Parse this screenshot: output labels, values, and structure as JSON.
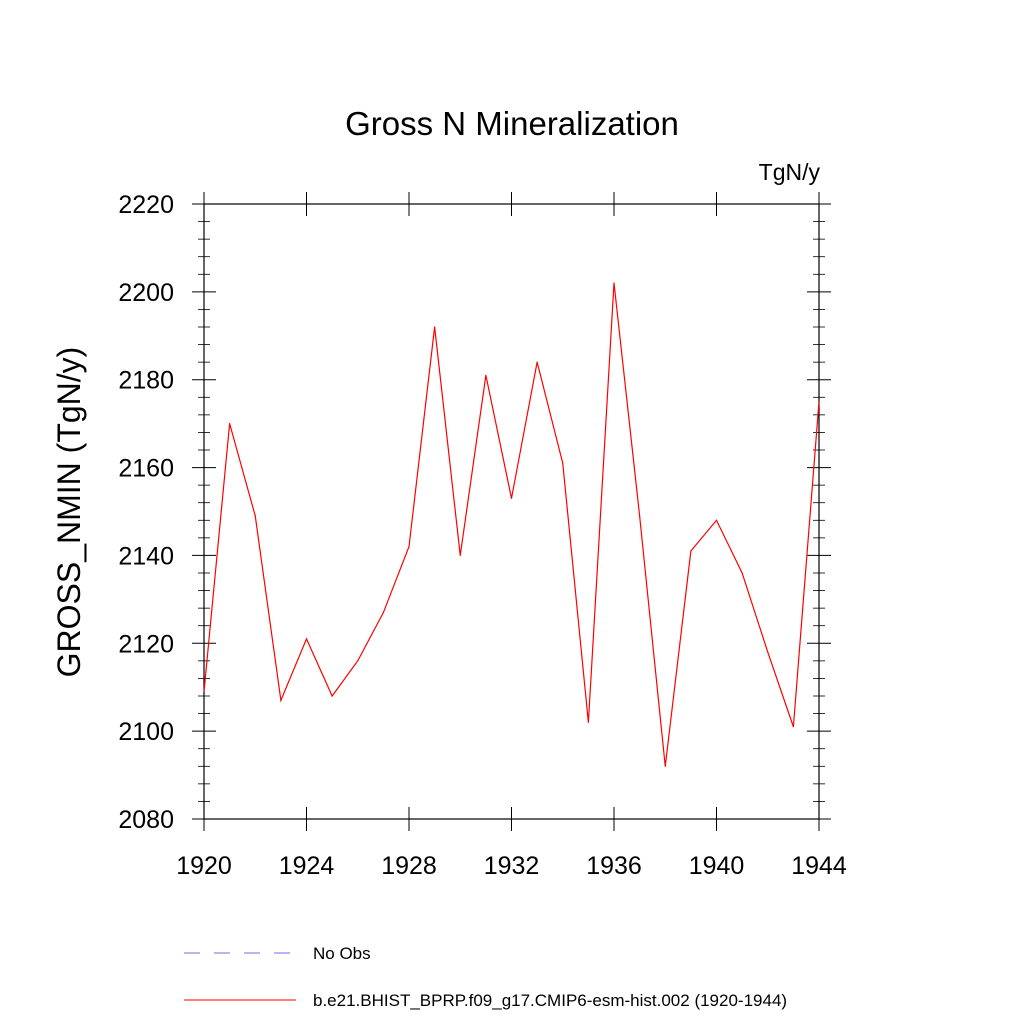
{
  "chart_data": {
    "type": "line",
    "title": "Gross N Mineralization",
    "units_label": "TgN/y",
    "ylabel": "GROSS_NMIN  (TgN/y)",
    "xlabel": "",
    "xlim": [
      1920,
      1944
    ],
    "ylim": [
      2080,
      2220
    ],
    "xticks": [
      1920,
      1924,
      1928,
      1932,
      1936,
      1940,
      1944
    ],
    "yticks": [
      2080,
      2100,
      2120,
      2140,
      2160,
      2180,
      2200,
      2220
    ],
    "series": [
      {
        "name": "b.e21.BHIST_BPRP.f09_g17.CMIP6-esm-hist.002 (1920-1944)",
        "color": "#ff0000",
        "style": "solid",
        "x": [
          1920,
          1921,
          1922,
          1923,
          1924,
          1925,
          1926,
          1927,
          1928,
          1929,
          1930,
          1931,
          1932,
          1933,
          1934,
          1935,
          1936,
          1937,
          1938,
          1939,
          1940,
          1941,
          1942,
          1943,
          1944
        ],
        "y": [
          2109,
          2170,
          2149,
          2107,
          2121,
          2108,
          2116,
          2127,
          2142,
          2192,
          2140,
          2181,
          2153,
          2184,
          2161,
          2102,
          2202,
          2149,
          2092,
          2141,
          2148,
          2136,
          2118,
          2101,
          2175
        ]
      }
    ],
    "legend": [
      {
        "label": "No Obs",
        "color": "#7b68ee",
        "style": "dashed"
      },
      {
        "label": "b.e21.BHIST_BPRP.f09_g17.CMIP6-esm-hist.002 (1920-1944)",
        "color": "#ff0000",
        "style": "solid"
      }
    ],
    "legend_position": "bottom"
  }
}
